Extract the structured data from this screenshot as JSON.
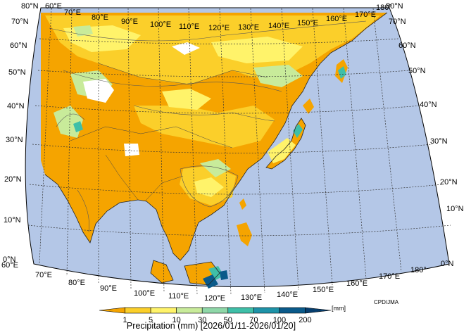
{
  "map": {
    "credit": "CPD/JMA",
    "ocean_color": "#b4c7e7",
    "lat_labels": [
      "0°N",
      "10°N",
      "20°N",
      "30°N",
      "40°N",
      "50°N",
      "60°N",
      "70°N",
      "80°N"
    ],
    "lon_labels_bottom": [
      "60°E",
      "70°E",
      "80°E",
      "90°E",
      "100°E",
      "110°E",
      "120°E",
      "130°E",
      "140°E",
      "150°E",
      "160°E",
      "170°E",
      "180°"
    ],
    "lon_labels_top": [
      "60°E",
      "70°E",
      "80°E",
      "90°E",
      "100°E",
      "110°E",
      "120°E",
      "130°E",
      "140°E",
      "150°E",
      "160°E",
      "170°E",
      "180°"
    ]
  },
  "colorbar": {
    "title": "Precipitation (mm) [2026/01/11-2026/01/20]",
    "unit": "[mm]",
    "ticks": [
      "1",
      "5",
      "10",
      "30",
      "50",
      "70",
      "100",
      "200"
    ],
    "colors": [
      "#f5a400",
      "#fbcf2a",
      "#fff36a",
      "#c8eb9a",
      "#8fd7a8",
      "#3fbfa8",
      "#1e93a8",
      "#0a5a8a",
      "#063e6e"
    ]
  }
}
